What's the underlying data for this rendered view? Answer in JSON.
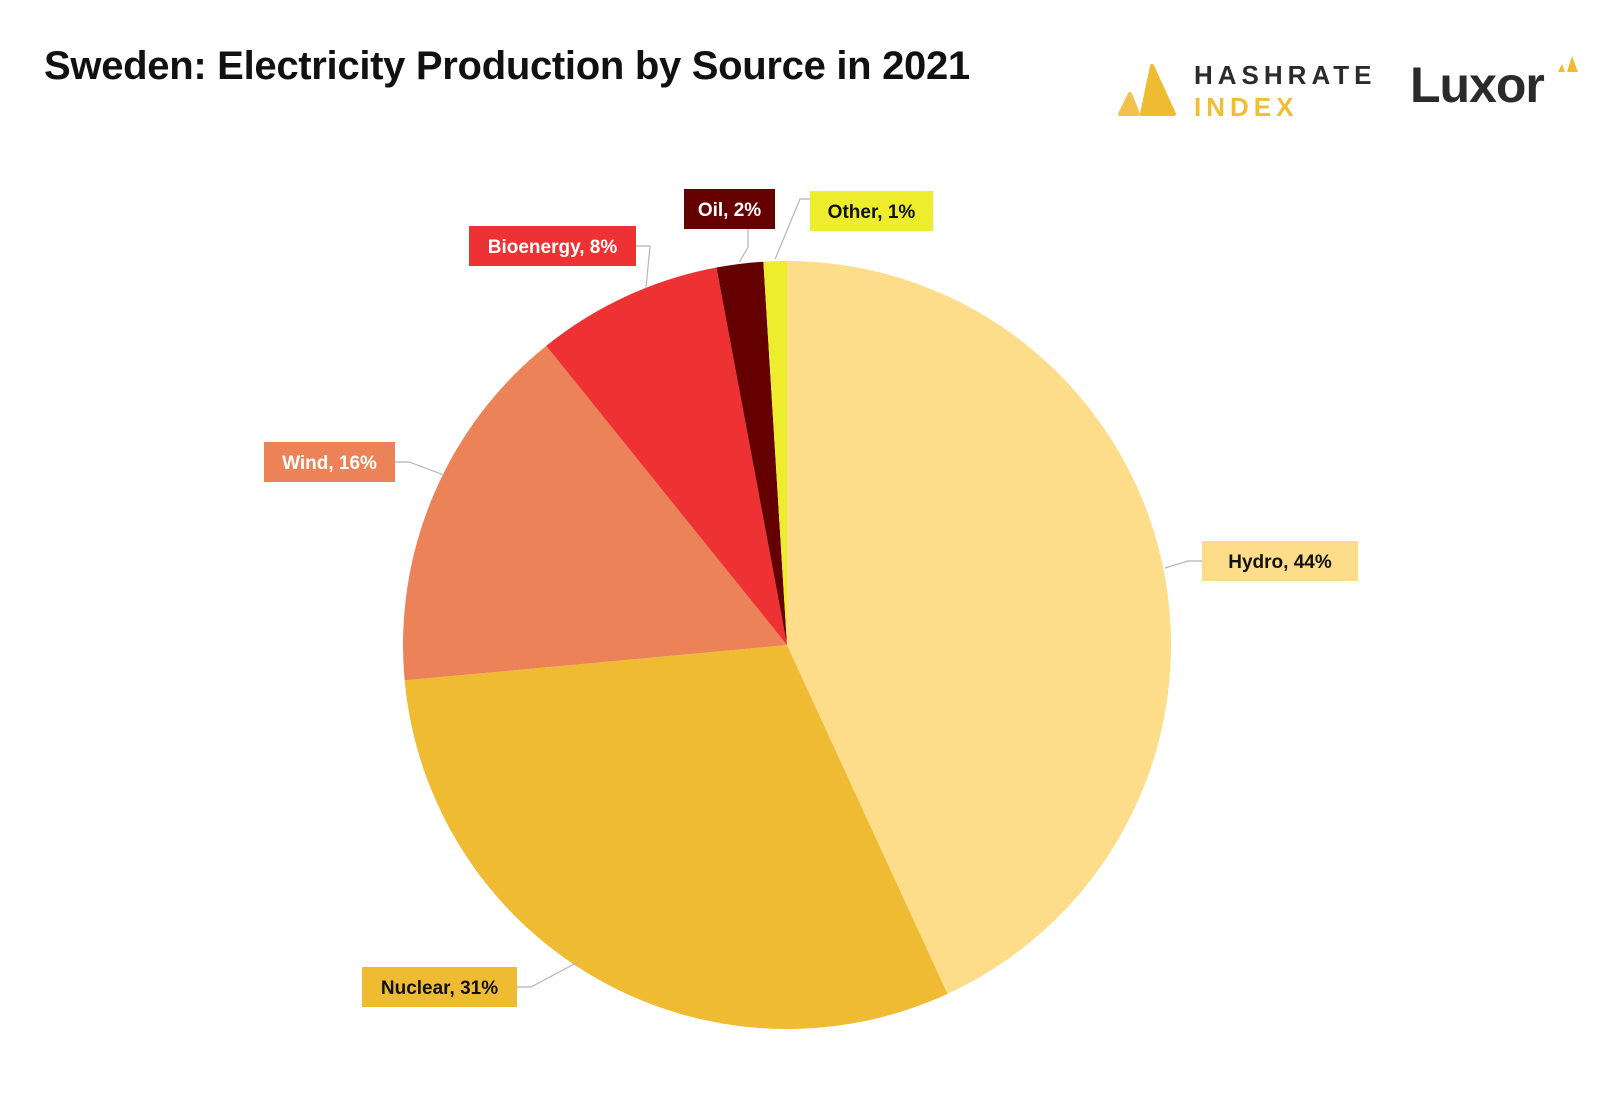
{
  "header": {
    "title": "Sweden: Electricity Production by Source in 2021"
  },
  "logos": {
    "hashrate_line1": "HASHRATE",
    "hashrate_line2": "INDEX",
    "luxor": "Luxor",
    "icon": "hashrate-index-logo-icon"
  },
  "chart_data": {
    "type": "pie",
    "title": "Sweden: Electricity Production by Source in 2021",
    "start_angle_deg": 0,
    "direction": "clockwise",
    "slices": [
      {
        "name": "Hydro",
        "value": 44,
        "label": "Hydro, 44%",
        "color": "#fedd8a",
        "label_bg": "#fedd8a",
        "label_text": "#111111"
      },
      {
        "name": "Nuclear",
        "value": 31,
        "label": "Nuclear, 31%",
        "color": "#efbb33",
        "label_bg": "#efbb33",
        "label_text": "#111111"
      },
      {
        "name": "Wind",
        "value": 16,
        "label": "Wind, 16%",
        "color": "#ec8257",
        "label_bg": "#ec8257",
        "label_text": "#ffffff"
      },
      {
        "name": "Bioenergy",
        "value": 8,
        "label": "Bioenergy, 8%",
        "color": "#ee3234",
        "label_bg": "#ee3234",
        "label_text": "#ffffff"
      },
      {
        "name": "Oil",
        "value": 2,
        "label": "Oil, 2%",
        "color": "#640000",
        "label_bg": "#640000",
        "label_text": "#ffffff"
      },
      {
        "name": "Other",
        "value": 1,
        "label": "Other, 1%",
        "color": "#eded2d",
        "label_bg": "#eded2d",
        "label_text": "#111111"
      }
    ]
  }
}
